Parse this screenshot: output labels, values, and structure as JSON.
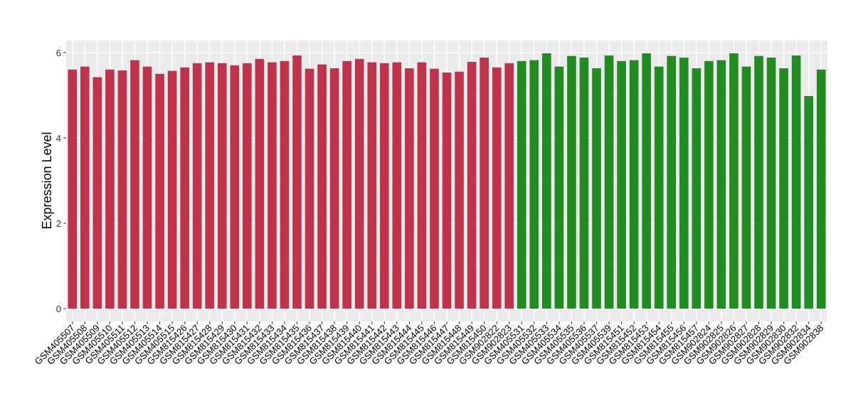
{
  "chart_data": {
    "type": "bar",
    "ylabel": "Expression Level",
    "categories": [
      "GSM405507",
      "GSM405508",
      "GSM405509",
      "GSM405510",
      "GSM405511",
      "GSM405512",
      "GSM405513",
      "GSM405514",
      "GSM405515",
      "GSM815426",
      "GSM815427",
      "GSM815428",
      "GSM815429",
      "GSM815430",
      "GSM815431",
      "GSM815432",
      "GSM815433",
      "GSM815434",
      "GSM815435",
      "GSM815436",
      "GSM815437",
      "GSM815438",
      "GSM815439",
      "GSM815440",
      "GSM815441",
      "GSM815442",
      "GSM815443",
      "GSM815444",
      "GSM815445",
      "GSM815446",
      "GSM815447",
      "GSM815448",
      "GSM815449",
      "GSM815450",
      "GSM902822",
      "GSM902823",
      "GSM405531",
      "GSM405532",
      "GSM405533",
      "GSM405534",
      "GSM405535",
      "GSM405536",
      "GSM405537",
      "GSM405539",
      "GSM815451",
      "GSM815452",
      "GSM815453",
      "GSM815454",
      "GSM815455",
      "GSM815456",
      "GSM815457",
      "GSM902824",
      "GSM902825",
      "GSM902826",
      "GSM902827",
      "GSM902828",
      "GSM902829",
      "GSM902830",
      "GSM902832",
      "GSM902834",
      "GSM902838"
    ],
    "series": [
      {
        "color": "#c0334d",
        "values": [
          5.6,
          5.67,
          5.42,
          5.6,
          5.58,
          5.82,
          5.67,
          5.5,
          5.57,
          5.65,
          5.75,
          5.77,
          5.75,
          5.7,
          5.75,
          5.85,
          5.77,
          5.8,
          5.93,
          5.62,
          5.72,
          5.63,
          5.8,
          5.85,
          5.77,
          5.75,
          5.77,
          5.63,
          5.77,
          5.62,
          5.53,
          5.55,
          5.78,
          5.88,
          5.65,
          5.75,
          null,
          null,
          null,
          null,
          null,
          null,
          null,
          null,
          null,
          null,
          null,
          null,
          null,
          null,
          null,
          null,
          null,
          null,
          null,
          null,
          null,
          null,
          null,
          null,
          null
        ]
      },
      {
        "color": "#228b22",
        "values": [
          null,
          null,
          null,
          null,
          null,
          null,
          null,
          null,
          null,
          null,
          null,
          null,
          null,
          null,
          null,
          null,
          null,
          null,
          null,
          null,
          null,
          null,
          null,
          null,
          null,
          null,
          null,
          null,
          null,
          null,
          null,
          null,
          null,
          null,
          null,
          null,
          5.8,
          5.82,
          5.98,
          5.67,
          5.92,
          5.88,
          5.63,
          5.93,
          5.8,
          5.82,
          5.98,
          5.67,
          5.92,
          5.88,
          5.63,
          5.8,
          5.82,
          5.98,
          5.67,
          5.92,
          5.88,
          5.63,
          5.93,
          4.98,
          5.6
        ]
      }
    ],
    "ylim": [
      -0.3,
      6.28
    ],
    "yticks": [
      0,
      2,
      4,
      6
    ],
    "grid": true
  }
}
